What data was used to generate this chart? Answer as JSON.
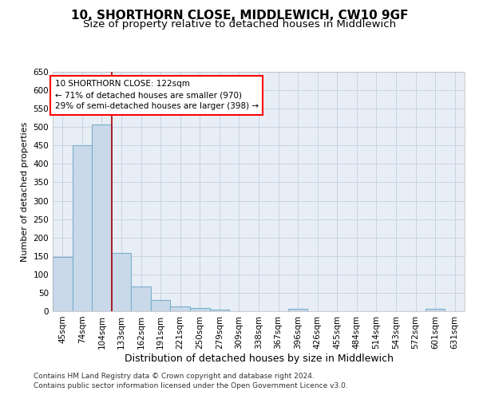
{
  "title": "10, SHORTHORN CLOSE, MIDDLEWICH, CW10 9GF",
  "subtitle": "Size of property relative to detached houses in Middlewich",
  "xlabel": "Distribution of detached houses by size in Middlewich",
  "ylabel": "Number of detached properties",
  "footnote1": "Contains HM Land Registry data © Crown copyright and database right 2024.",
  "footnote2": "Contains public sector information licensed under the Open Government Licence v3.0.",
  "bar_labels": [
    "45sqm",
    "74sqm",
    "104sqm",
    "133sqm",
    "162sqm",
    "191sqm",
    "221sqm",
    "250sqm",
    "279sqm",
    "309sqm",
    "338sqm",
    "367sqm",
    "396sqm",
    "426sqm",
    "455sqm",
    "484sqm",
    "514sqm",
    "543sqm",
    "572sqm",
    "601sqm",
    "631sqm"
  ],
  "bar_values": [
    148,
    450,
    507,
    159,
    67,
    30,
    14,
    9,
    4,
    0,
    0,
    0,
    6,
    0,
    0,
    0,
    0,
    0,
    0,
    6,
    0
  ],
  "bar_color": "#c9d9ea",
  "bar_edge_color": "#7aafc8",
  "grid_color": "#c8d4e4",
  "background_color": "#e8eef6",
  "vline_x": 2.5,
  "vline_color": "#aa0000",
  "annotation_line1": "10 SHORTHORN CLOSE: 122sqm",
  "annotation_line2": "← 71% of detached houses are smaller (970)",
  "annotation_line3": "29% of semi-detached houses are larger (398) →",
  "ylim": [
    0,
    650
  ],
  "yticks": [
    0,
    50,
    100,
    150,
    200,
    250,
    300,
    350,
    400,
    450,
    500,
    550,
    600,
    650
  ],
  "title_fontsize": 11,
  "subtitle_fontsize": 9.5,
  "xlabel_fontsize": 9,
  "ylabel_fontsize": 8,
  "tick_fontsize": 7.5,
  "annotation_fontsize": 7.5,
  "footnote_fontsize": 6.5
}
